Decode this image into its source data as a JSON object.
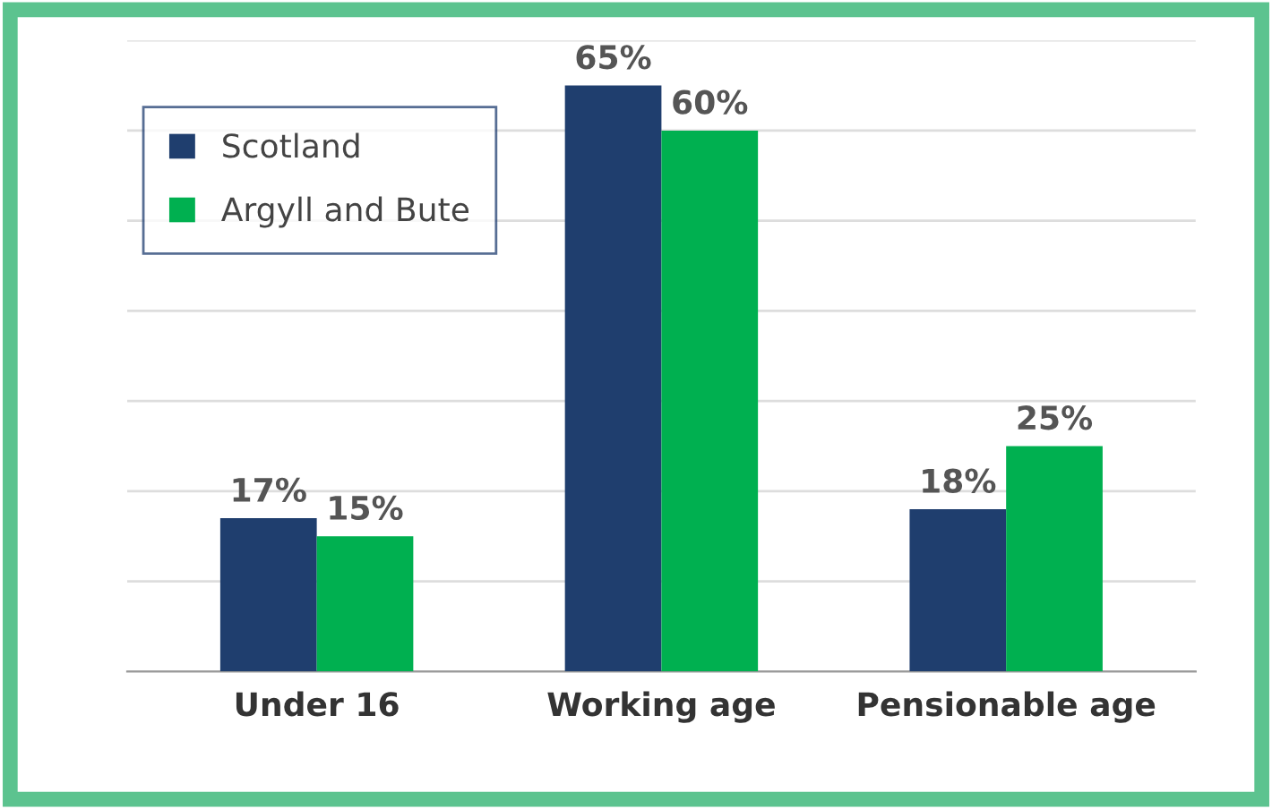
{
  "chart_data": {
    "type": "bar",
    "categories": [
      "Under 16",
      "Working age",
      "Pensionable age"
    ],
    "series": [
      {
        "name": "Scotland",
        "color": "#1f3e6e",
        "values": [
          17,
          65,
          18
        ],
        "value_labels": [
          "17%",
          "65%",
          "18%"
        ]
      },
      {
        "name": "Argyll and Bute",
        "color": "#00b050",
        "values": [
          15,
          60,
          25
        ],
        "value_labels": [
          "15%",
          "60%",
          "25%"
        ]
      }
    ],
    "ylim": [
      0,
      70
    ],
    "yticks": [
      {
        "value": 0,
        "label": null
      },
      {
        "value": 10,
        "label": null
      },
      {
        "value": 20,
        "label": null
      },
      {
        "value": 30,
        "label": null
      },
      {
        "value": 40,
        "label": null
      },
      {
        "value": 50,
        "label": null
      },
      {
        "value": 60,
        "label": null
      },
      {
        "value": 70,
        "label": null
      }
    ],
    "tick_labels": "x",
    "grid": "y",
    "legend": "top left"
  }
}
